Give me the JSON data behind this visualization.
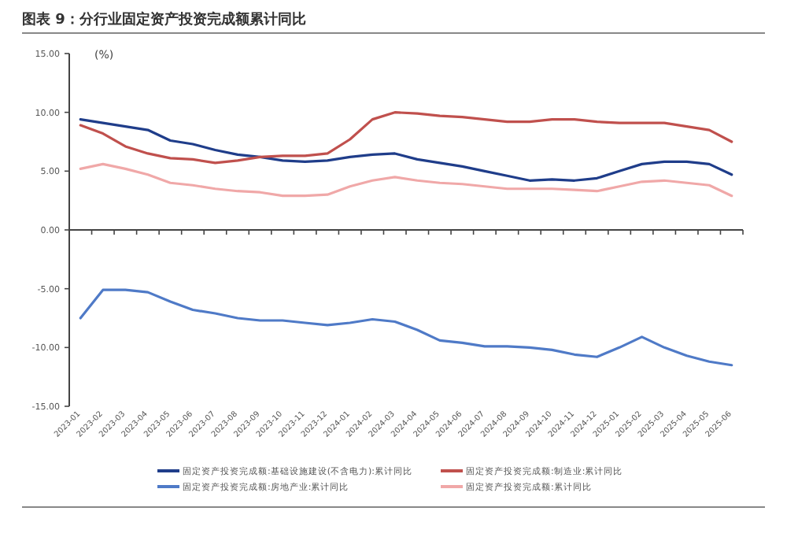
{
  "chart_data": {
    "type": "line",
    "title": "图表 9：分行业固定资产投资完成额累计同比",
    "ylabel": "(%)",
    "categories": [
      "2023-01",
      "2023-02",
      "2023-03",
      "2023-04",
      "2023-05",
      "2023-06",
      "2023-07",
      "2023-08",
      "2023-09",
      "2023-10",
      "2023-11",
      "2023-12",
      "2024-01",
      "2024-02",
      "2024-03",
      "2024-04",
      "2024-05",
      "2024-06",
      "2024-07",
      "2024-08",
      "2024-09",
      "2024-10",
      "2024-11",
      "2024-12",
      "2025-01",
      "2025-02",
      "2025-03",
      "2025-04",
      "2025-05",
      "2025-06"
    ],
    "series": [
      {
        "name": "固定资产投资完成额:基础设施建设(不含电力):累计同比",
        "color": "#1f3d8a",
        "values": [
          9.4,
          9.1,
          8.8,
          8.5,
          7.6,
          7.3,
          6.8,
          6.4,
          6.2,
          5.9,
          5.8,
          5.9,
          6.2,
          6.4,
          6.5,
          6.0,
          5.7,
          5.4,
          5.0,
          4.6,
          4.2,
          4.3,
          4.2,
          4.4,
          5.0,
          5.6,
          5.8,
          5.8,
          5.6,
          4.7
        ]
      },
      {
        "name": "固定资产投资完成额:制造业:累计同比",
        "color": "#c0504d",
        "values": [
          8.9,
          8.2,
          7.1,
          6.5,
          6.1,
          6.0,
          5.7,
          5.9,
          6.2,
          6.3,
          6.3,
          6.5,
          7.7,
          9.4,
          10.0,
          9.9,
          9.7,
          9.6,
          9.4,
          9.2,
          9.2,
          9.4,
          9.4,
          9.2,
          9.1,
          9.1,
          9.1,
          8.8,
          8.5,
          7.5
        ]
      },
      {
        "name": "固定资产投资完成额:房地产业:累计同比",
        "color": "#4f7ac7",
        "values": [
          -7.5,
          -5.1,
          -5.1,
          -5.3,
          -6.1,
          -6.8,
          -7.1,
          -7.5,
          -7.7,
          -7.7,
          -7.9,
          -8.1,
          -7.9,
          -7.6,
          -7.8,
          -8.5,
          -9.4,
          -9.6,
          -9.9,
          -9.9,
          -10.0,
          -10.2,
          -10.6,
          -10.8,
          -10.0,
          -9.1,
          -10.0,
          -10.7,
          -11.2,
          -11.5
        ]
      },
      {
        "name": "固定资产投资完成额:累计同比",
        "color": "#f0a8a8",
        "values": [
          5.2,
          5.6,
          5.2,
          4.7,
          4.0,
          3.8,
          3.5,
          3.3,
          3.2,
          2.9,
          2.9,
          3.0,
          3.7,
          4.2,
          4.5,
          4.2,
          4.0,
          3.9,
          3.7,
          3.5,
          3.5,
          3.5,
          3.4,
          3.3,
          3.7,
          4.1,
          4.2,
          4.0,
          3.8,
          2.9
        ]
      }
    ],
    "ylim": [
      -15,
      15
    ],
    "yticks": [
      {
        "value": -15,
        "label": "-15.00"
      },
      {
        "value": -10,
        "label": "-10.00"
      },
      {
        "value": -5,
        "label": "-5.00"
      },
      {
        "value": 0,
        "label": "0.00"
      },
      {
        "value": 5,
        "label": "5.00"
      },
      {
        "value": 10,
        "label": "10.00"
      },
      {
        "value": 15,
        "label": "15.00"
      }
    ],
    "legend": "bottom",
    "marker": "none",
    "line_style": "solid"
  }
}
